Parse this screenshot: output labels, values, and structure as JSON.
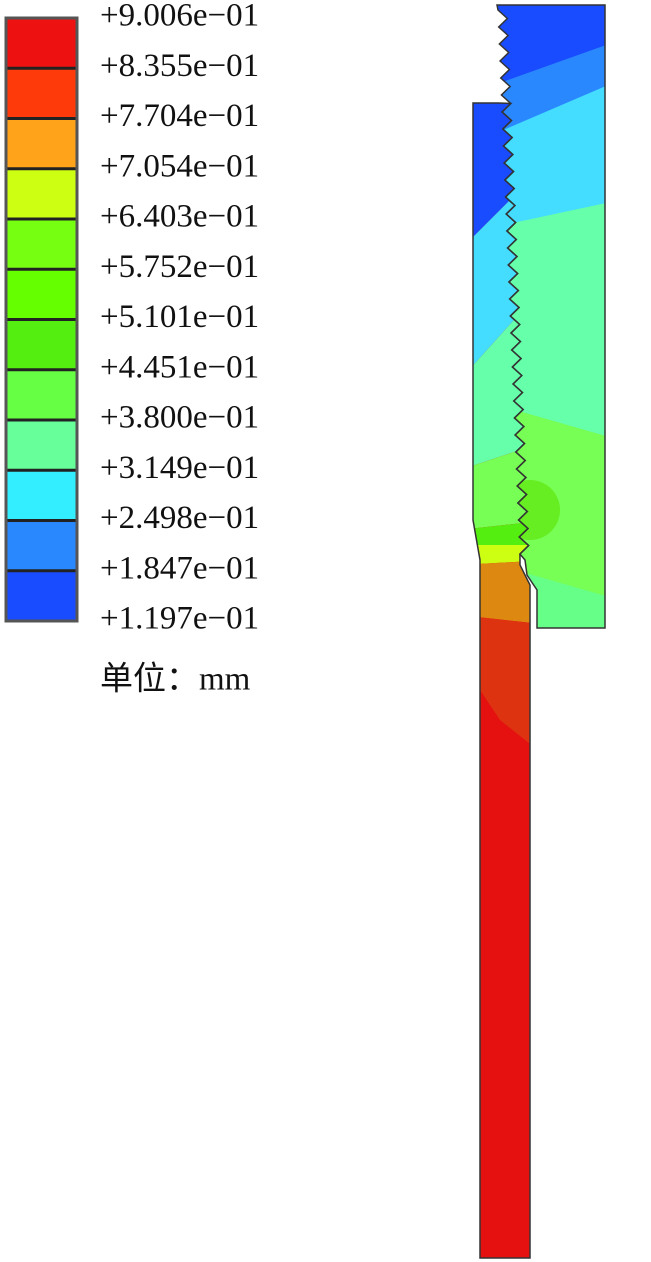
{
  "legend": {
    "labels": [
      "+9.006e−01",
      "+8.355e−01",
      "+7.704e−01",
      "+7.054e−01",
      "+6.403e−01",
      "+5.752e−01",
      "+5.101e−01",
      "+4.451e−01",
      "+3.800e−01",
      "+3.149e−01",
      "+2.498e−01",
      "+1.847e−01",
      "+1.197e−01"
    ],
    "colors": [
      "#ee1111",
      "#ff3a0a",
      "#ffa41a",
      "#ccff11",
      "#77ff11",
      "#66ff00",
      "#55ee11",
      "#66ff44",
      "#66ff99",
      "#33eeff",
      "#2a88ff",
      "#1a4cff"
    ],
    "unit": "单位：mm"
  }
}
